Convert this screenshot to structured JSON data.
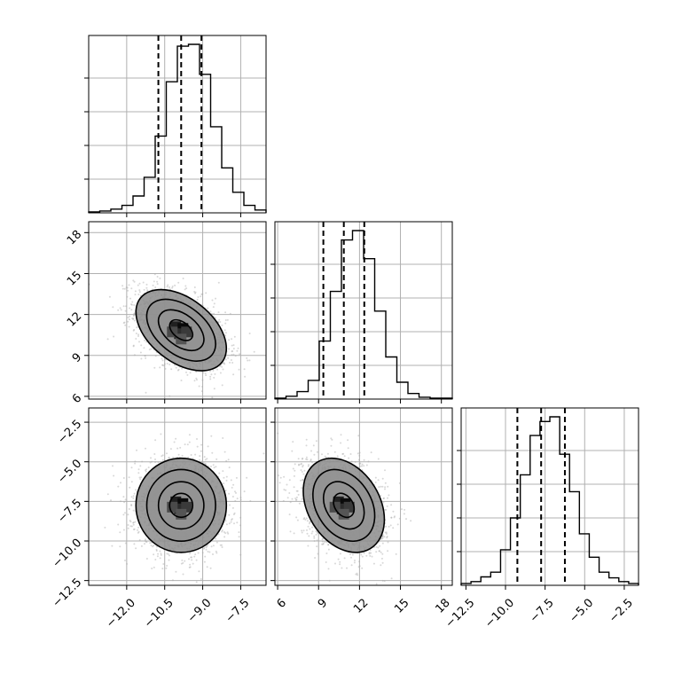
{
  "chart_data": {
    "type": "corner",
    "title": "",
    "parameters": [
      {
        "index": 0,
        "label": "",
        "range": [
          -13.5,
          -6.5
        ],
        "ticks": [
          -12.0,
          -10.5,
          -9.0,
          -7.5
        ],
        "tick_labels": [
          "−12.0",
          "−10.5",
          "−9.0",
          "−7.5"
        ],
        "quantiles": [
          -10.75,
          -9.85,
          -9.05
        ]
      },
      {
        "index": 1,
        "label": "",
        "range": [
          5.8,
          18.8
        ],
        "ticks": [
          6,
          9,
          12,
          15,
          18
        ],
        "tick_labels": [
          "6",
          "9",
          "12",
          "15",
          "18"
        ],
        "quantiles": [
          9.35,
          10.85,
          12.35
        ]
      },
      {
        "index": 2,
        "label": "",
        "range": [
          -12.8,
          -1.6
        ],
        "ticks": [
          -12.5,
          -10.0,
          -7.5,
          -5.0,
          -2.5
        ],
        "tick_labels": [
          "−12.5",
          "−10.0",
          "−7.5",
          "−5.0",
          "−2.5"
        ],
        "quantiles": [
          -9.25,
          -7.75,
          -6.25
        ]
      }
    ],
    "histograms": [
      {
        "param": 0,
        "values": [
          1,
          2,
          4,
          8,
          18,
          38,
          82,
          140,
          178,
          180,
          148,
          92,
          48,
          22,
          8,
          3
        ]
      },
      {
        "param": 1,
        "values": [
          1,
          3,
          8,
          20,
          62,
          115,
          170,
          180,
          150,
          94,
          45,
          18,
          6,
          2,
          1,
          1
        ]
      },
      {
        "param": 2,
        "values": [
          2,
          4,
          9,
          14,
          38,
          72,
          118,
          160,
          175,
          180,
          140,
          100,
          55,
          30,
          14,
          8,
          4,
          2
        ]
      }
    ],
    "joint_panels": [
      {
        "x": 0,
        "y": 1,
        "center": [
          -9.85,
          10.85
        ],
        "spread": [
          0.9,
          1.5
        ],
        "correlation": -0.45,
        "levels": [
          0.12,
          0.39,
          0.68,
          0.86
        ],
        "scatter_points": 1800
      },
      {
        "x": 0,
        "y": 2,
        "center": [
          -9.85,
          -7.75
        ],
        "spread": [
          0.9,
          1.5
        ],
        "correlation": 0.0,
        "levels": [
          0.12,
          0.39,
          0.68,
          0.86
        ],
        "scatter_points": 1800
      },
      {
        "x": 1,
        "y": 2,
        "center": [
          10.85,
          -7.75
        ],
        "spread": [
          1.5,
          1.5
        ],
        "correlation": -0.3,
        "levels": [
          0.12,
          0.39,
          0.68,
          0.86
        ],
        "scatter_points": 1800
      }
    ],
    "grid": true
  }
}
